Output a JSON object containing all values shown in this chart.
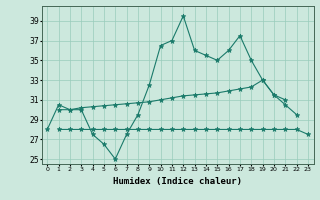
{
  "xlabel": "Humidex (Indice chaleur)",
  "x": [
    0,
    1,
    2,
    3,
    4,
    5,
    6,
    7,
    8,
    9,
    10,
    11,
    12,
    13,
    14,
    15,
    16,
    17,
    18,
    19,
    20,
    21,
    22,
    23
  ],
  "line1": [
    28.0,
    30.5,
    30.0,
    30.0,
    27.5,
    26.5,
    25.0,
    27.5,
    29.5,
    32.5,
    36.5,
    37.0,
    39.5,
    36.0,
    35.5,
    35.0,
    36.0,
    37.5,
    35.0,
    33.0,
    31.5,
    30.5,
    29.5,
    null
  ],
  "line2": [
    null,
    30.0,
    30.0,
    30.2,
    30.3,
    30.4,
    30.5,
    30.6,
    30.7,
    30.8,
    31.0,
    31.2,
    31.4,
    31.5,
    31.6,
    31.7,
    31.9,
    32.1,
    32.3,
    33.0,
    31.5,
    31.0,
    null,
    null
  ],
  "line3": [
    null,
    28.0,
    28.0,
    28.0,
    28.0,
    28.0,
    28.0,
    28.0,
    28.0,
    28.0,
    28.0,
    28.0,
    28.0,
    28.0,
    28.0,
    28.0,
    28.0,
    28.0,
    28.0,
    28.0,
    28.0,
    28.0,
    28.0,
    27.5
  ],
  "ylim": [
    24.5,
    40.5
  ],
  "yticks": [
    25,
    27,
    29,
    31,
    33,
    35,
    37,
    39
  ],
  "xlim": [
    -0.5,
    23.5
  ],
  "bg_color": "#cce8dd",
  "line_color": "#1a7a6a",
  "grid_color": "#99ccbb",
  "marker": "*",
  "marker_size": 3.5,
  "linewidth": 0.8
}
